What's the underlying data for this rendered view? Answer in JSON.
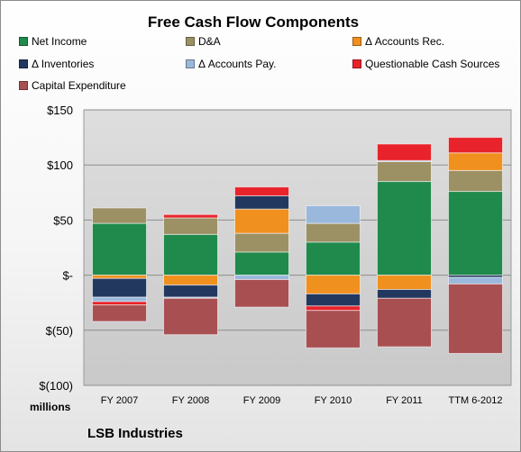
{
  "chart_data": {
    "type": "bar",
    "stacked": true,
    "title": "Free Cash Flow Components",
    "units_label": "millions",
    "footer": "LSB Industries",
    "categories": [
      "FY 2007",
      "FY 2008",
      "FY 2009",
      "FY 2010",
      "FY 2011",
      "TTM 6-2012"
    ],
    "y_tick_labels": [
      "$150",
      "$100",
      "$50",
      "$-",
      "$(50)",
      "$(100)"
    ],
    "y_ticks": [
      150,
      100,
      50,
      0,
      -50,
      -100
    ],
    "ylim": [
      -100,
      150
    ],
    "grid": true,
    "legend_position": "top",
    "series": [
      {
        "name": "Net Income",
        "color": "#1f8a4c",
        "values": [
          47,
          37,
          21,
          30,
          85,
          76
        ]
      },
      {
        "name": "D&A",
        "color": "#9c9165",
        "values": [
          14,
          15,
          17,
          17,
          18,
          19
        ]
      },
      {
        "name": "Δ Accounts Rec.",
        "color": "#f0901e",
        "values": [
          -3,
          -9,
          22,
          -17,
          -13,
          16
        ]
      },
      {
        "name": "Δ Inventories",
        "color": "#23385e",
        "values": [
          -17,
          -11,
          12,
          -11,
          -8,
          -2
        ]
      },
      {
        "name": "Δ Accounts Pay.",
        "color": "#9ab8dc",
        "values": [
          -4,
          -1,
          -4,
          16,
          1,
          -6
        ]
      },
      {
        "name": "Questionable Cash Sources",
        "color": "#e8232b",
        "values": [
          -3,
          3,
          8,
          -4,
          15,
          14
        ]
      },
      {
        "name": "Capital Expenditure",
        "color": "#a84f52",
        "values": [
          -15,
          -33,
          -25,
          -34,
          -44,
          -63
        ]
      }
    ]
  }
}
